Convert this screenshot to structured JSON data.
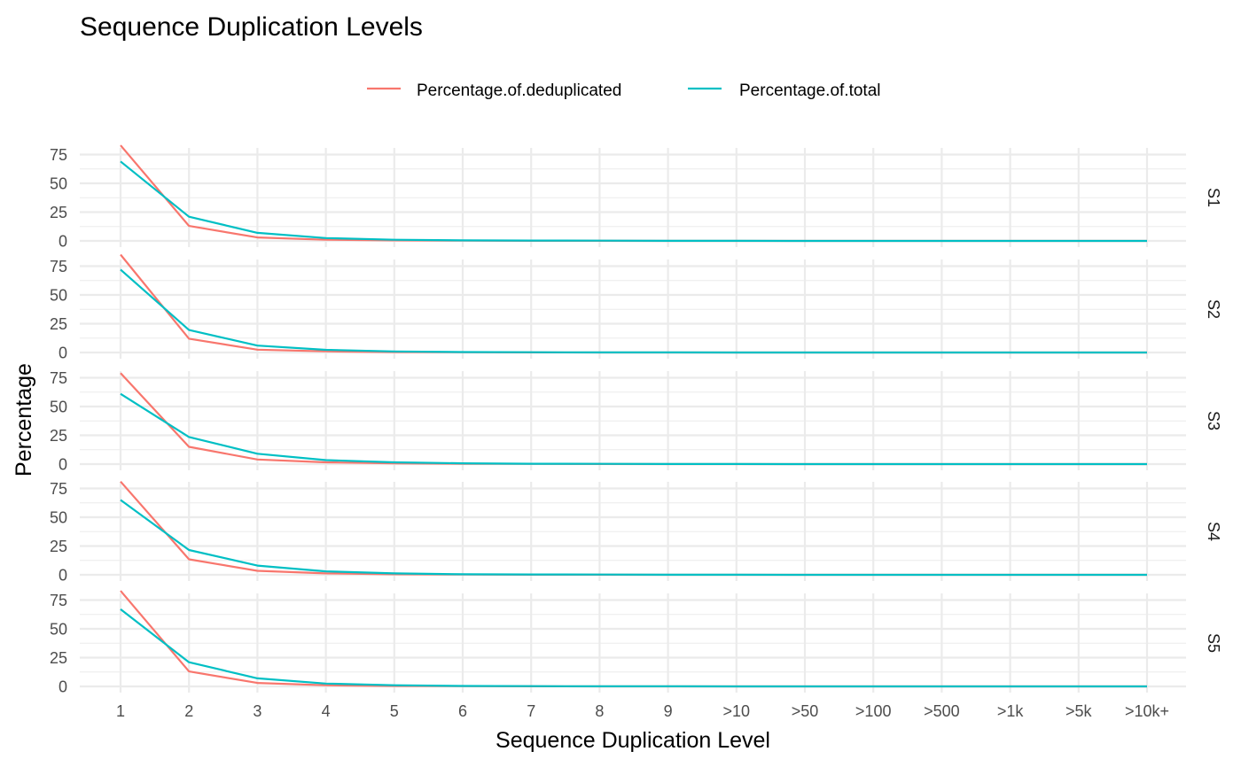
{
  "chart_data": {
    "type": "line",
    "title": "Sequence Duplication Levels",
    "xlabel": "Sequence Duplication Level",
    "ylabel": "Percentage",
    "categories": [
      "1",
      "2",
      "3",
      "4",
      "5",
      "6",
      "7",
      "8",
      "9",
      ">10",
      ">50",
      ">100",
      ">500",
      ">1k",
      ">5k",
      ">10k+"
    ],
    "y_ticks": [
      0,
      25,
      50,
      75
    ],
    "ylim": [
      0,
      85
    ],
    "legend_position": "top",
    "grid": true,
    "series_colors": {
      "Percentage.of.deduplicated": "#F8766D",
      "Percentage.of.total": "#00BFC4"
    },
    "facets": [
      {
        "label": "S1",
        "series": [
          {
            "name": "Percentage.of.deduplicated",
            "values": [
              83,
              13,
              3,
              1,
              0.5,
              0.2,
              0.1,
              0.1,
              0,
              0,
              0,
              0,
              0,
              0,
              0,
              0
            ]
          },
          {
            "name": "Percentage.of.total",
            "values": [
              69,
              21,
              7,
              2.5,
              1,
              0.5,
              0.3,
              0.2,
              0.1,
              0.1,
              0,
              0,
              0,
              0,
              0,
              0
            ]
          }
        ]
      },
      {
        "label": "S2",
        "series": [
          {
            "name": "Percentage.of.deduplicated",
            "values": [
              85,
              12,
              2.5,
              1,
              0.4,
              0.2,
              0.1,
              0,
              0,
              0,
              0,
              0,
              0,
              0,
              0,
              0
            ]
          },
          {
            "name": "Percentage.of.total",
            "values": [
              72,
              19.5,
              6,
              2.3,
              0.9,
              0.4,
              0.2,
              0.1,
              0.1,
              0,
              0,
              0,
              0,
              0,
              0,
              0
            ]
          }
        ]
      },
      {
        "label": "S3",
        "series": [
          {
            "name": "Percentage.of.deduplicated",
            "values": [
              79,
              15,
              4,
              1.5,
              0.7,
              0.3,
              0.2,
              0.1,
              0,
              0,
              0,
              0,
              0,
              0,
              0,
              0
            ]
          },
          {
            "name": "Percentage.of.total",
            "values": [
              61,
              23.5,
              9,
              3.5,
              1.5,
              0.7,
              0.3,
              0.2,
              0.1,
              0.1,
              0,
              0,
              0,
              0,
              0,
              0
            ]
          }
        ]
      },
      {
        "label": "S4",
        "series": [
          {
            "name": "Percentage.of.deduplicated",
            "values": [
              81,
              13.5,
              3.5,
              1.2,
              0.5,
              0.2,
              0.1,
              0.1,
              0,
              0,
              0,
              0,
              0,
              0,
              0,
              0
            ]
          },
          {
            "name": "Percentage.of.total",
            "values": [
              65,
              21.5,
              8,
              3,
              1.2,
              0.5,
              0.3,
              0.2,
              0.1,
              0.1,
              0,
              0,
              0,
              0,
              0,
              0
            ]
          }
        ]
      },
      {
        "label": "S5",
        "series": [
          {
            "name": "Percentage.of.deduplicated",
            "values": [
              83,
              13,
              3,
              1,
              0.4,
              0.2,
              0.1,
              0,
              0,
              0,
              0,
              0,
              0,
              0,
              0,
              0
            ]
          },
          {
            "name": "Percentage.of.total",
            "values": [
              67,
              21,
              7,
              2.5,
              1,
              0.4,
              0.2,
              0.1,
              0.1,
              0,
              0,
              0,
              0,
              0,
              0,
              0
            ]
          }
        ]
      }
    ]
  }
}
